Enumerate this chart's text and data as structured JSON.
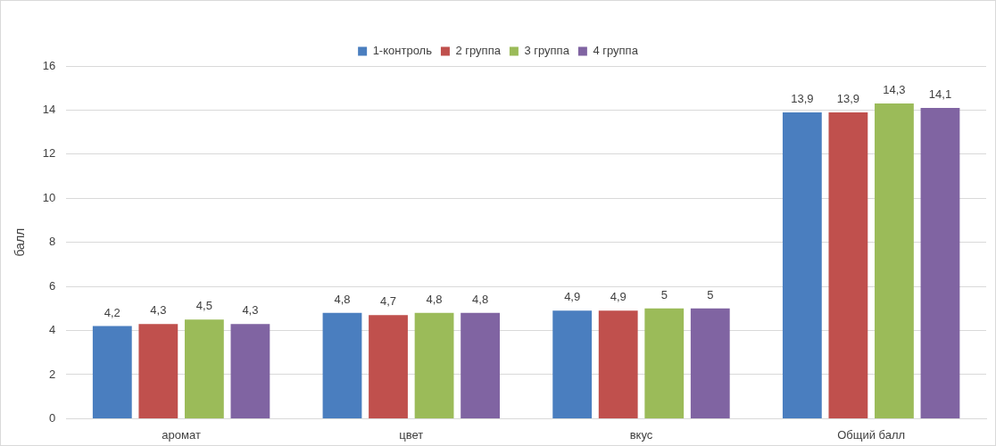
{
  "chart_data": {
    "type": "bar",
    "ylabel": "балл",
    "categories": [
      "аромат",
      "цвет",
      "вкус",
      "Общий балл"
    ],
    "series": [
      {
        "name": "1-контроль",
        "color": "#4a7ebf",
        "values": [
          4.2,
          4.8,
          4.9,
          13.9
        ],
        "value_labels": [
          "4,2",
          "4,8",
          "4,9",
          "13,9"
        ]
      },
      {
        "name": "2 группа",
        "color": "#c0504d",
        "values": [
          4.3,
          4.7,
          4.9,
          13.9
        ],
        "value_labels": [
          "4,3",
          "4,7",
          "4,9",
          "13,9"
        ]
      },
      {
        "name": "3 группа",
        "color": "#9bbb59",
        "values": [
          4.5,
          4.8,
          5,
          14.3
        ],
        "value_labels": [
          "4,5",
          "4,8",
          "5",
          "14,3"
        ]
      },
      {
        "name": "4 группа",
        "color": "#8064a2",
        "values": [
          4.3,
          4.8,
          5,
          14.1
        ],
        "value_labels": [
          "4,3",
          "4,8",
          "5",
          "14,1"
        ]
      }
    ],
    "ylim": [
      0,
      16
    ],
    "yticks": [
      0,
      2,
      4,
      6,
      8,
      10,
      12,
      14,
      16
    ],
    "grid": "y",
    "legend": "top"
  }
}
